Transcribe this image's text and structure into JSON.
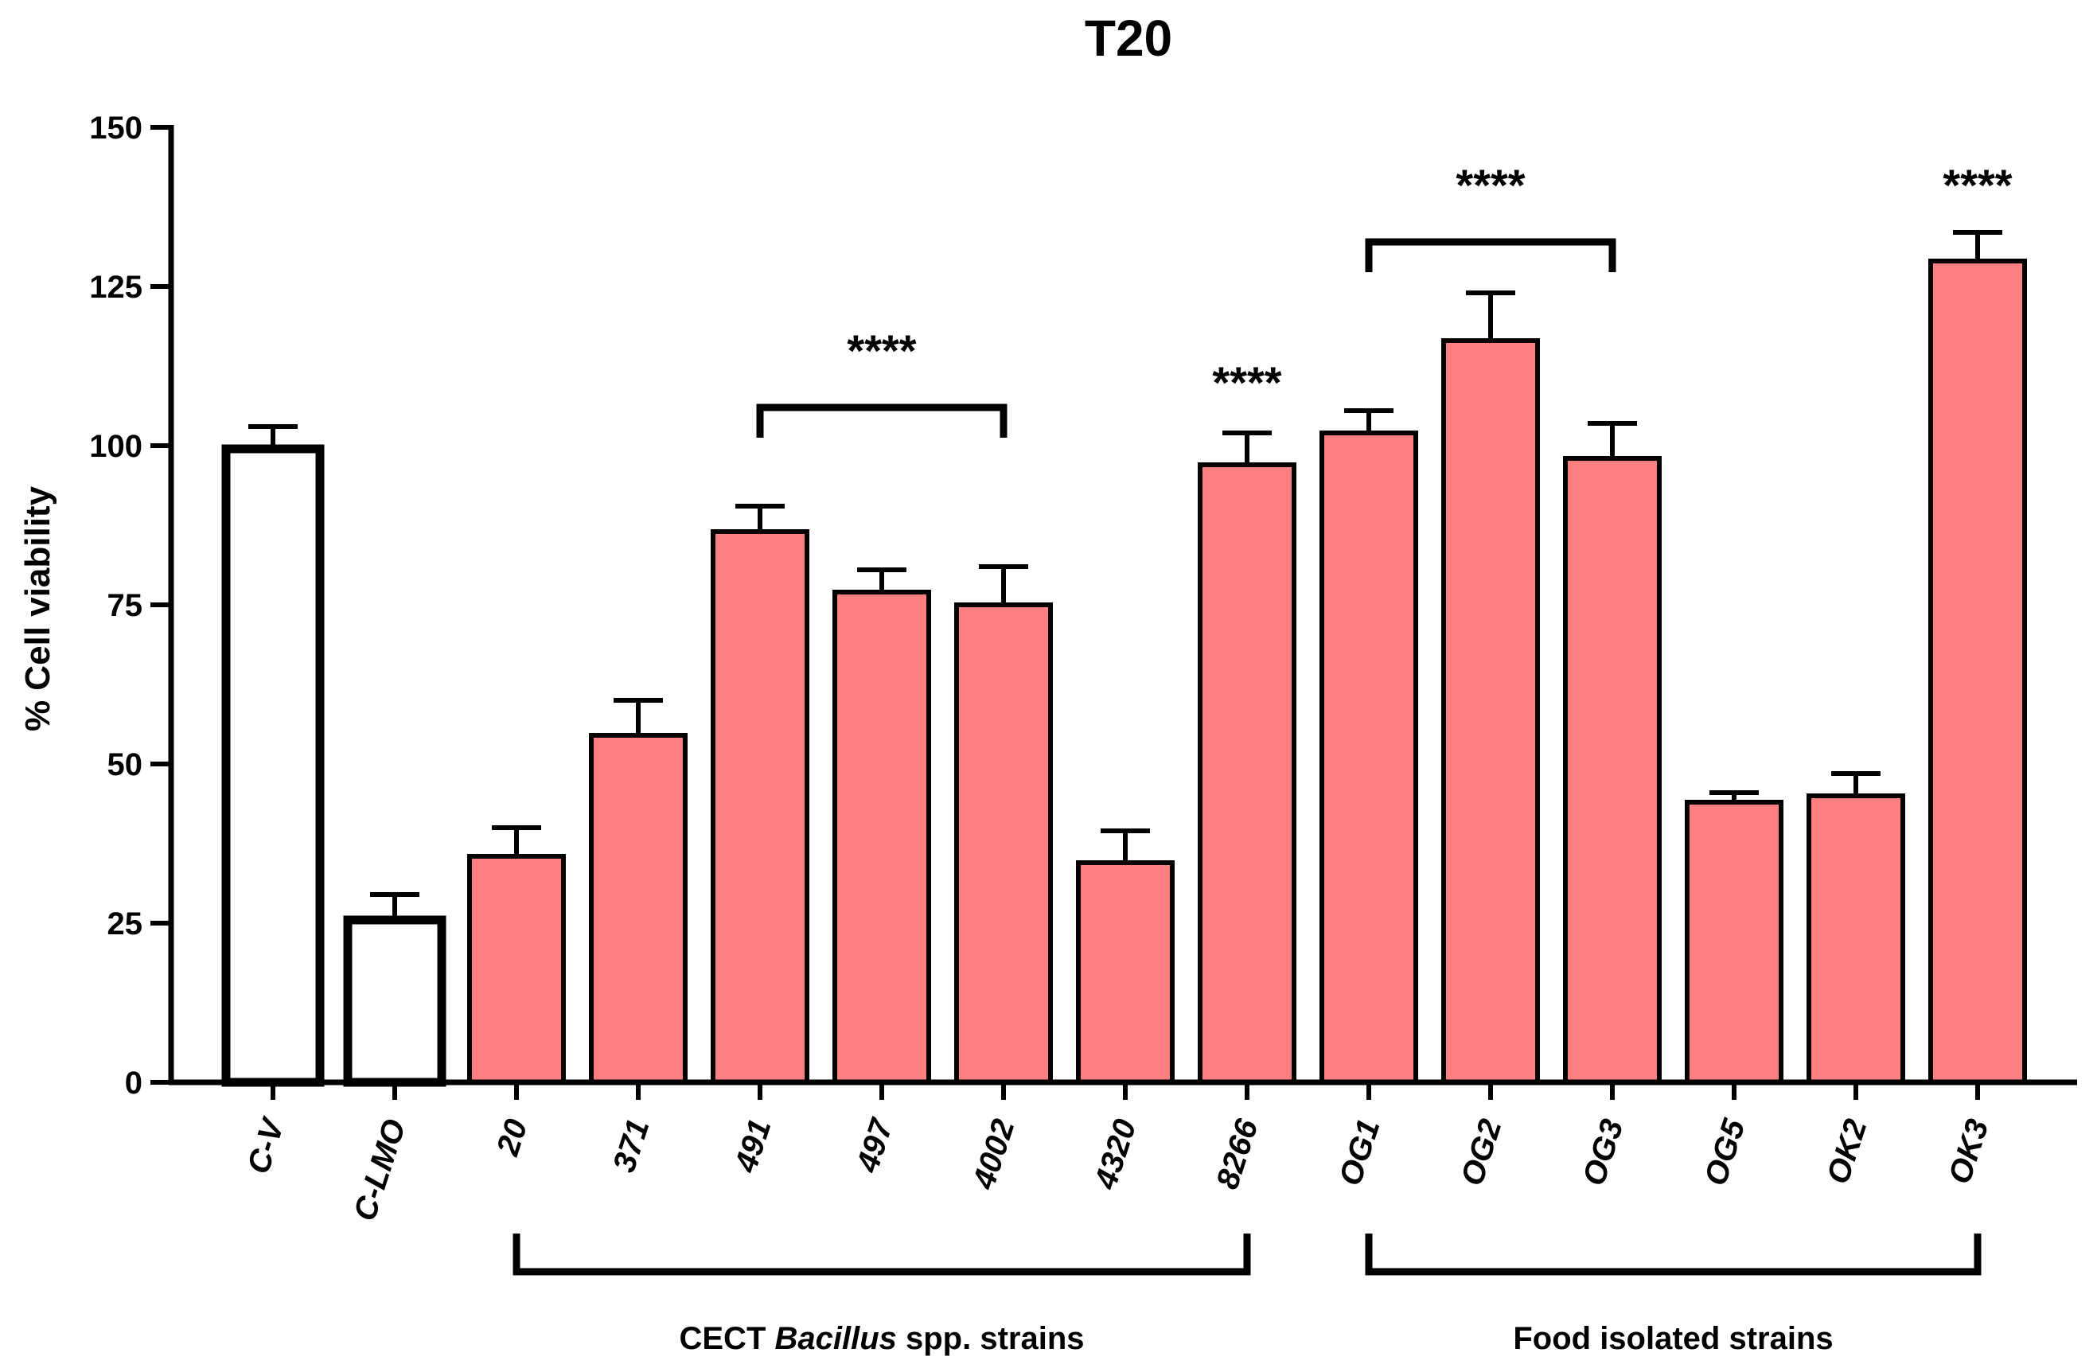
{
  "chart_data": {
    "type": "bar",
    "title": "T20",
    "ylabel": "% Cell viability",
    "xlabel": "",
    "ylim": [
      0,
      150
    ],
    "yticks": [
      0,
      25,
      50,
      75,
      100,
      125,
      150
    ],
    "categories": [
      "C-V",
      "C-LMO",
      "20",
      "371",
      "491",
      "497",
      "4002",
      "4320",
      "8266",
      "OG1",
      "OG2",
      "OG3",
      "OG5",
      "OK2",
      "OK3"
    ],
    "values": [
      99.5,
      25.5,
      35.5,
      54.5,
      86.5,
      77,
      75,
      34.5,
      97,
      102,
      116.5,
      98,
      44,
      45,
      129
    ],
    "errors": [
      3.5,
      4,
      4.5,
      5.5,
      4,
      3.5,
      6,
      5,
      5,
      3.5,
      7.5,
      5.5,
      1.5,
      3.5,
      4.5
    ],
    "bar_styles": [
      "control",
      "control",
      "strain",
      "strain",
      "strain",
      "strain",
      "strain",
      "strain",
      "strain",
      "strain",
      "strain",
      "strain",
      "strain",
      "strain",
      "strain"
    ],
    "colors": {
      "strain_fill": "#ff8080",
      "control_fill": "#ffffff",
      "stroke": "#000000"
    },
    "significance": [
      {
        "label": "****",
        "from": "491",
        "to": "4002",
        "y": 106,
        "text_y": 115
      },
      {
        "label": "****",
        "from": "8266",
        "to": "8266",
        "y": null,
        "text_y": 110
      },
      {
        "label": "****",
        "from": "OG1",
        "to": "OG3",
        "y": 132,
        "text_y": 141
      },
      {
        "label": "****",
        "from": "OK3",
        "to": "OK3",
        "y": null,
        "text_y": 141
      }
    ],
    "groups": [
      {
        "label_pre": "CECT ",
        "label_italic": "Bacillus",
        "label_post": " spp. strains",
        "from": "20",
        "to": "8266"
      },
      {
        "label_pre": "Food isolated strains",
        "label_italic": "",
        "label_post": "",
        "from": "OG1",
        "to": "OK3"
      }
    ]
  }
}
